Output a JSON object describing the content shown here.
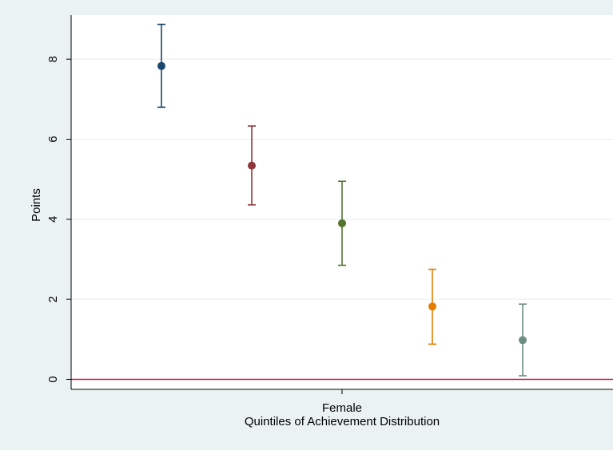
{
  "chart_data": {
    "type": "scatter",
    "subtype": "point-with-error-bars",
    "title": "",
    "xlabel": "Quintiles of Achievement Distribution",
    "ylabel": "Points",
    "categories": [
      "Female"
    ],
    "ylim": [
      -0.25,
      9.1
    ],
    "yticks": [
      0,
      2,
      4,
      6,
      8
    ],
    "grid": true,
    "legend": "none",
    "reference_line": {
      "y": 0,
      "color": "#c0224a"
    },
    "series": [
      {
        "value": 7.83,
        "lower": 6.8,
        "upper": 8.87,
        "color": "#1a476f"
      },
      {
        "value": 5.34,
        "lower": 4.36,
        "upper": 6.33,
        "color": "#90353b"
      },
      {
        "value": 3.9,
        "lower": 2.85,
        "upper": 4.95,
        "color": "#55752f"
      },
      {
        "value": 1.82,
        "lower": 0.88,
        "upper": 2.75,
        "color": "#e37e00"
      },
      {
        "value": 0.98,
        "lower": 0.09,
        "upper": 1.88,
        "color": "#6e8e84"
      }
    ]
  }
}
